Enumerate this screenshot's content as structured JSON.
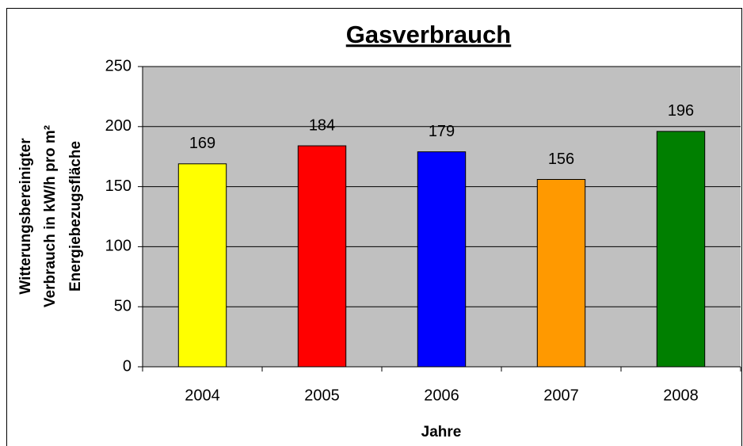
{
  "chart_data": {
    "type": "bar",
    "title": "Gasverbrauch",
    "y_label": [
      "Witterungsbereinigter",
      "Verbrauch in kW/h pro m²",
      "Energiebezugsfläche"
    ],
    "x_label": "Jahre",
    "categories": [
      "2004",
      "2005",
      "2006",
      "2007",
      "2008"
    ],
    "values": [
      169,
      184,
      179,
      156,
      196
    ],
    "colors": [
      "#ffff00",
      "#ff0000",
      "#0000ff",
      "#ff9900",
      "#007f00"
    ],
    "ylim": [
      0,
      250
    ],
    "yticks": [
      0,
      50,
      100,
      150,
      200,
      250
    ],
    "grid": true
  }
}
